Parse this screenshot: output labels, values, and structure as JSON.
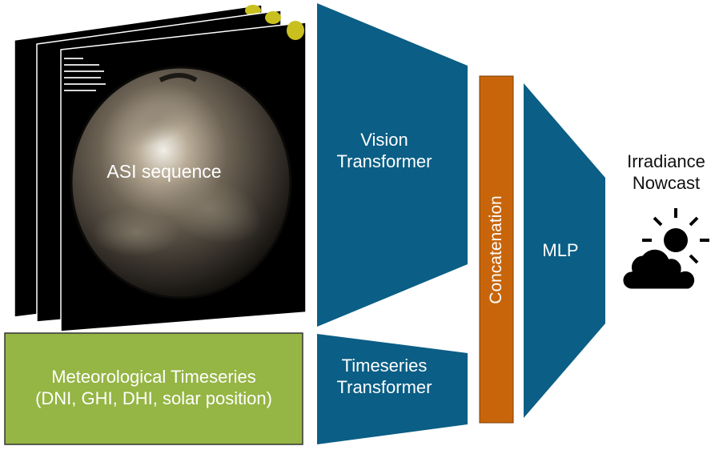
{
  "nodes": {
    "asi": {
      "label": "ASI sequence"
    },
    "vision_transformer": {
      "lines": [
        "Vision",
        "Transformer"
      ]
    },
    "timeseries_transformer": {
      "lines": [
        "Timeseries",
        "Transformer"
      ]
    },
    "concatenation": {
      "label": "Concatenation"
    },
    "mlp": {
      "label": "MLP"
    },
    "meteorological": {
      "lines": [
        "Meteorological Timeseries",
        "(DNI, GHI, DHI, solar position)"
      ]
    },
    "output": {
      "lines": [
        "Irradiance",
        "Nowcast"
      ],
      "icon": "sun-behind-cloud-icon"
    }
  },
  "colors": {
    "transformer_blue": "#0b5e85",
    "concat_orange": "#c8650b",
    "met_green": "#95b544",
    "sky_frame": "#000000",
    "marker_yellow": "#c9c020"
  }
}
